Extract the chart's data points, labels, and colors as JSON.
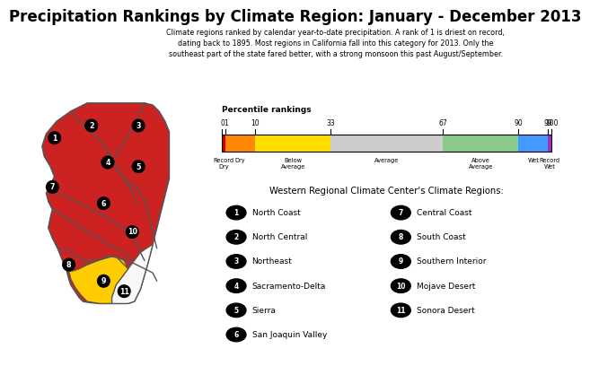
{
  "title": "Precipitation Rankings by Climate Region: January - December 2013",
  "subtitle_lines": [
    "Climate regions ranked by calendar year-to-date precipitation. A rank of 1 is driest on record,",
    "dating back to 1895. Most regions in California fall into this category for 2013. Only the",
    "southeast part of the state fared better, with a strong monsoon this past August/September."
  ],
  "colorbar_label": "Percentile rankings",
  "colorbar_segments": [
    [
      0,
      1,
      "#cc0000"
    ],
    [
      1,
      10,
      "#ff8800"
    ],
    [
      10,
      33,
      "#ffdd00"
    ],
    [
      33,
      67,
      "#cccccc"
    ],
    [
      67,
      90,
      "#88cc88"
    ],
    [
      90,
      99,
      "#4499ff"
    ],
    [
      99,
      100,
      "#9933cc"
    ]
  ],
  "colorbar_ticks": [
    0,
    1,
    10,
    33,
    67,
    90,
    99,
    100
  ],
  "colorbar_category_info": [
    [
      0,
      1,
      "Record\nDry"
    ],
    [
      1,
      10,
      "Dry"
    ],
    [
      10,
      33,
      "Below\nAverage"
    ],
    [
      33,
      67,
      "Average"
    ],
    [
      67,
      90,
      "Above\nAverage"
    ],
    [
      90,
      99,
      "Wet"
    ],
    [
      99,
      100,
      "Record\nWet"
    ]
  ],
  "legend_title": "Western Regional Climate Center's Climate Regions:",
  "legend_left": [
    [
      1,
      "North Coast"
    ],
    [
      2,
      "North Central"
    ],
    [
      3,
      "Northeast"
    ],
    [
      4,
      "Sacramento-Delta"
    ],
    [
      5,
      "Sierra"
    ],
    [
      6,
      "San Joaquin Valley"
    ]
  ],
  "legend_right": [
    [
      7,
      "Central Coast"
    ],
    [
      8,
      "South Coast"
    ],
    [
      9,
      "Southern Interior"
    ],
    [
      10,
      "Mojave Desert"
    ],
    [
      11,
      "Sonora Desert"
    ]
  ],
  "red_color": "#cc2222",
  "yellow_color": "#ffcc00",
  "white_color": "#f8f8f8",
  "bg_color": "#ffffff",
  "border_color": "#555555",
  "title_fontsize": 12,
  "subtitle_fontsize": 5.8
}
